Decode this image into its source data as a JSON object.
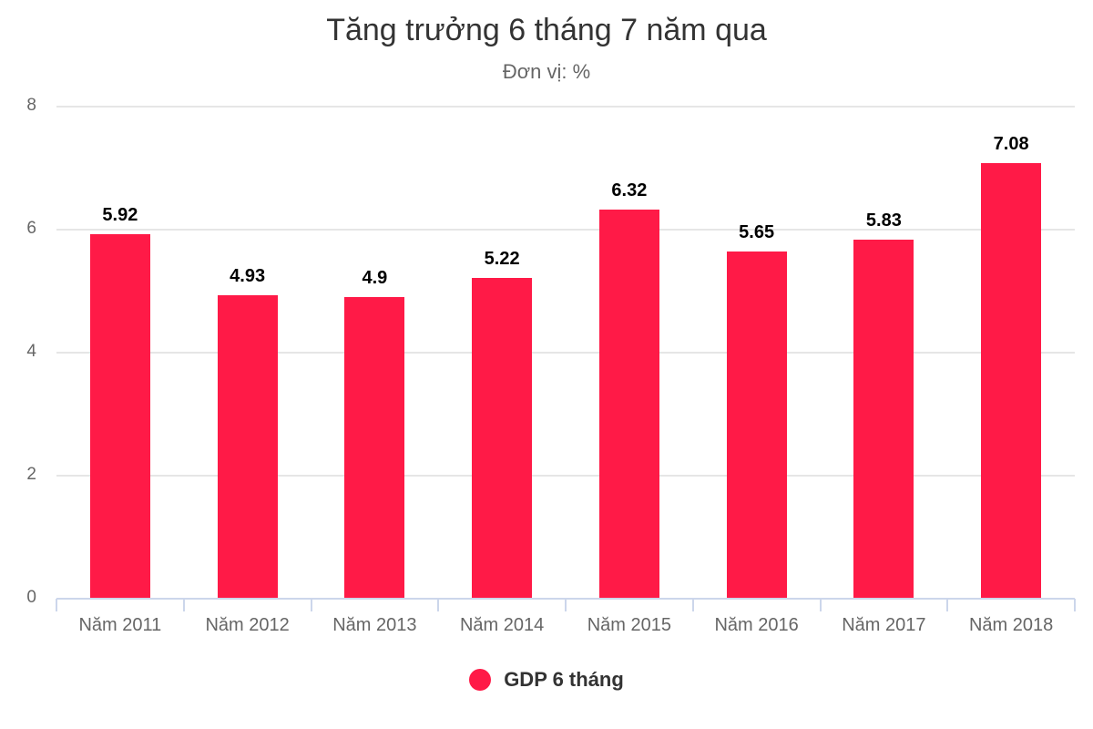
{
  "chart": {
    "title": "Tăng trưởng 6 tháng 7 năm qua",
    "subtitle": "Đơn vị: %",
    "bar_color": "#ff1a47",
    "legend_label": "GDP 6 tháng"
  },
  "chart_data": {
    "type": "bar",
    "title": "Tăng trưởng 6 tháng 7 năm qua",
    "subtitle": "Đơn vị: %",
    "xlabel": "",
    "ylabel": "",
    "categories": [
      "Năm 2011",
      "Năm 2012",
      "Năm 2013",
      "Năm 2014",
      "Năm 2015",
      "Năm 2016",
      "Năm 2017",
      "Năm 2018"
    ],
    "series": [
      {
        "name": "GDP 6 tháng",
        "color": "#ff1a47",
        "values": [
          5.92,
          4.93,
          4.9,
          5.22,
          6.32,
          5.65,
          5.83,
          7.08
        ]
      }
    ],
    "data_labels": [
      "5.92",
      "4.93",
      "4.9",
      "5.22",
      "6.32",
      "5.65",
      "5.83",
      "7.08"
    ],
    "ylim": [
      0,
      8
    ],
    "yticks": [
      "0",
      "2",
      "4",
      "6",
      "8"
    ],
    "grid": true,
    "legend_position": "bottom"
  }
}
